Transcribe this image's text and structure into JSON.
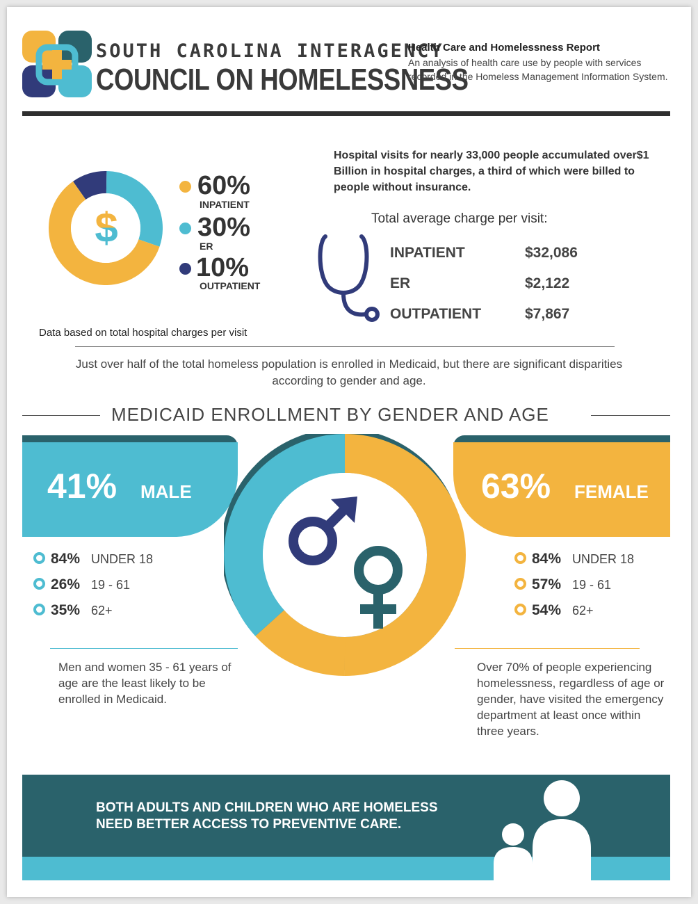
{
  "header": {
    "org_line1": "SOUTH CAROLINA INTERAGENCY",
    "org_line2": "COUNCIL ON HOMELESSNESS",
    "report_title": "Health Care and Homelessness Report",
    "report_subtitle": "An analysis of health care use by people with services recorded in the Homeless Management Information System."
  },
  "charges_donut": {
    "icon": "dollar-sign",
    "segments": [
      {
        "pct": "60%",
        "label": "INPATIENT",
        "color": "#f3b43f",
        "value": 60
      },
      {
        "pct": "30%",
        "label": "ER",
        "color": "#4ebcd1",
        "value": 30
      },
      {
        "pct": "10%",
        "label": "OUTPATIENT",
        "color": "#313b7a",
        "value": 10
      }
    ],
    "note": "Data based on total hospital charges per visit"
  },
  "hospital": {
    "summary": "Hospital visits for nearly 33,000 people accumulated over$1 Billion in hospital charges, a third of which were billed to people without insurance.",
    "avg_title": "Total average charge per visit:",
    "icon": "stethoscope",
    "rows": [
      {
        "label": "INPATIENT",
        "value": "$32,086"
      },
      {
        "label": "ER",
        "value": "$2,122"
      },
      {
        "label": "OUTPATIENT",
        "value": "$7,867"
      }
    ]
  },
  "intro": "Just over half of the total homeless population is enrolled in Medicaid, but there are significant disparities according to gender and age.",
  "section_title": "MEDICAID ENROLLMENT BY GENDER AND AGE",
  "male": {
    "pct": "41%",
    "word": "MALE",
    "color": "#4ebcd1",
    "stats": [
      {
        "pct": "84%",
        "age": "UNDER 18"
      },
      {
        "pct": "26%",
        "age": "19 - 61"
      },
      {
        "pct": "35%",
        "age": "62+"
      }
    ],
    "note": "Men and women 35 - 61 years of age are the least likely to be enrolled in Medicaid."
  },
  "female": {
    "pct": "63%",
    "word": "FEMALE",
    "color": "#f3b43f",
    "stats": [
      {
        "pct": "84%",
        "age": "UNDER 18"
      },
      {
        "pct": "57%",
        "age": "19 - 61"
      },
      {
        "pct": "54%",
        "age": "62+"
      }
    ],
    "note": "Over 70% of people experiencing homelessness, regardless of age or gender, have visited the emergency department at least once within three years."
  },
  "gender_ring": {
    "icons": [
      "male-symbol",
      "female-symbol"
    ],
    "male_color": "#4ebcd1",
    "female_color": "#f3b43f"
  },
  "footer": {
    "line1": "BOTH ADULTS AND CHILDREN WHO ARE HOMELESS",
    "line2": "NEED BETTER ACCESS TO PREVENTIVE CARE.",
    "icon": "adult-and-child"
  }
}
